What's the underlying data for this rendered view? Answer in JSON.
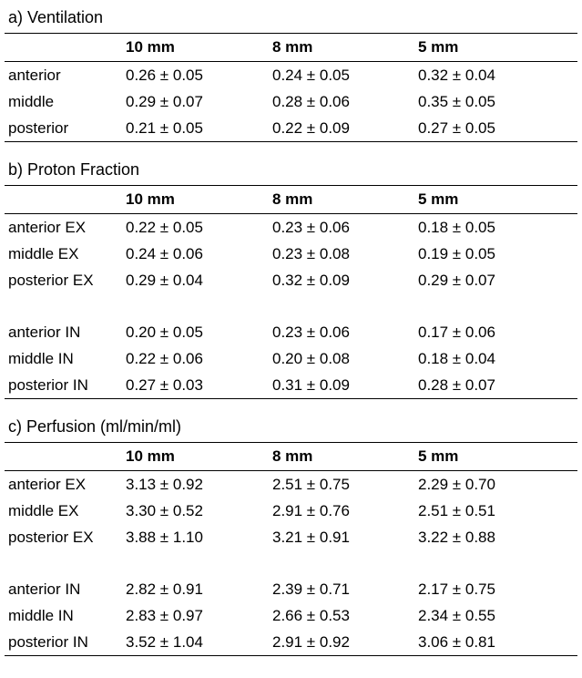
{
  "tables": [
    {
      "title": "a) Ventilation",
      "columns": [
        "10 mm",
        "8 mm",
        "5 mm"
      ],
      "groups": [
        {
          "rows": [
            {
              "label": "anterior",
              "values": [
                "0.26 ± 0.05",
                "0.24 ± 0.05",
                "0.32 ± 0.04"
              ]
            },
            {
              "label": "middle",
              "values": [
                "0.29 ± 0.07",
                "0.28 ± 0.06",
                "0.35 ± 0.05"
              ]
            },
            {
              "label": "posterior",
              "values": [
                "0.21 ± 0.05",
                "0.22 ± 0.09",
                "0.27 ± 0.05"
              ]
            }
          ]
        }
      ]
    },
    {
      "title": "b) Proton Fraction",
      "columns": [
        "10 mm",
        "8 mm",
        "5 mm"
      ],
      "groups": [
        {
          "rows": [
            {
              "label": "anterior EX",
              "values": [
                "0.22 ± 0.05",
                "0.23 ± 0.06",
                "0.18 ± 0.05"
              ]
            },
            {
              "label": "middle EX",
              "values": [
                "0.24 ± 0.06",
                "0.23 ± 0.08",
                "0.19 ± 0.05"
              ]
            },
            {
              "label": "posterior EX",
              "values": [
                "0.29 ± 0.04",
                "0.32 ± 0.09",
                "0.29 ± 0.07"
              ]
            }
          ]
        },
        {
          "rows": [
            {
              "label": "anterior IN",
              "values": [
                "0.20 ± 0.05",
                "0.23 ± 0.06",
                "0.17 ± 0.06"
              ]
            },
            {
              "label": "middle IN",
              "values": [
                "0.22 ± 0.06",
                "0.20 ± 0.08",
                "0.18 ± 0.04"
              ]
            },
            {
              "label": "posterior IN",
              "values": [
                "0.27 ± 0.03",
                "0.31 ± 0.09",
                "0.28 ± 0.07"
              ]
            }
          ]
        }
      ]
    },
    {
      "title": "c) Perfusion (ml/min/ml)",
      "columns": [
        "10 mm",
        "8 mm",
        "5 mm"
      ],
      "groups": [
        {
          "rows": [
            {
              "label": "anterior EX",
              "values": [
                "3.13 ± 0.92",
                "2.51 ± 0.75",
                "2.29 ± 0.70"
              ]
            },
            {
              "label": "middle EX",
              "values": [
                "3.30 ± 0.52",
                "2.91 ± 0.76",
                "2.51 ± 0.51"
              ]
            },
            {
              "label": "posterior EX",
              "values": [
                "3.88 ± 1.10",
                "3.21 ± 0.91",
                "3.22 ± 0.88"
              ]
            }
          ]
        },
        {
          "rows": [
            {
              "label": "anterior IN",
              "values": [
                "2.82 ± 0.91",
                "2.39 ± 0.71",
                "2.17 ± 0.75"
              ]
            },
            {
              "label": "middle IN",
              "values": [
                "2.83 ± 0.97",
                "2.66 ± 0.53",
                "2.34 ± 0.55"
              ]
            },
            {
              "label": "posterior IN",
              "values": [
                "3.52 ± 1.04",
                "2.91 ± 0.92",
                "3.06 ± 0.81"
              ]
            }
          ]
        }
      ]
    }
  ]
}
